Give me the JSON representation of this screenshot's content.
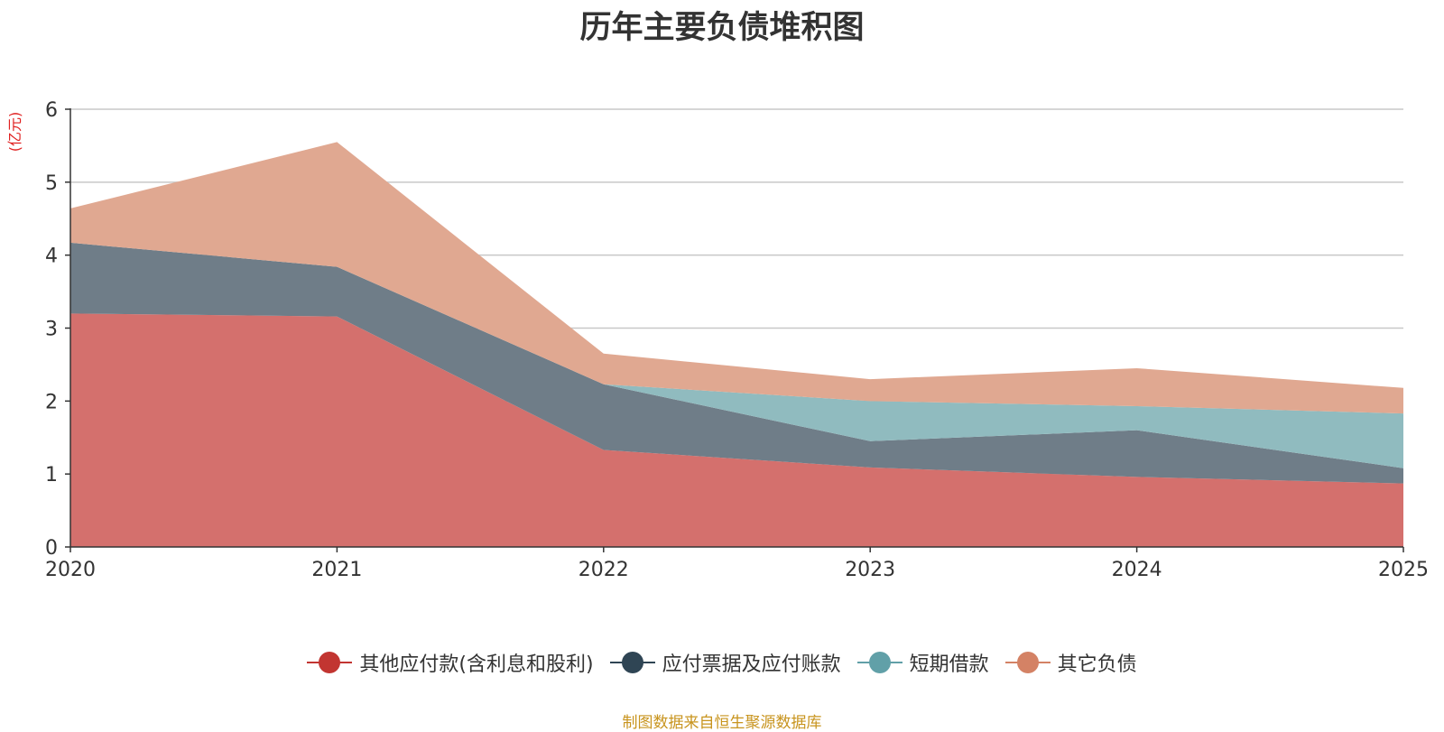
{
  "chart_data": {
    "type": "area",
    "stacked": true,
    "title": "历年主要负债堆积图",
    "ylabel": "(亿元)",
    "xlabel": "",
    "categories": [
      "2020",
      "2021",
      "2022",
      "2023",
      "2024",
      "2025"
    ],
    "ylim": [
      0,
      6
    ],
    "yticks": [
      0,
      1,
      2,
      3,
      4,
      5,
      6
    ],
    "grid": true,
    "legend_position": "bottom",
    "series": [
      {
        "name": "其他应付款(含利息和股利)",
        "color": "#c23531",
        "fill": "#d4706d",
        "values": [
          3.2,
          3.16,
          1.33,
          1.09,
          0.96,
          0.87
        ]
      },
      {
        "name": "应付票据及应付账款",
        "color": "#2f4554",
        "fill": "#6f7d88",
        "values": [
          0.97,
          0.68,
          0.9,
          0.36,
          0.64,
          0.21
        ]
      },
      {
        "name": "短期借款",
        "color": "#61a0a8",
        "fill": "#90bbbf",
        "values": [
          0.0,
          0.0,
          0.0,
          0.55,
          0.33,
          0.75
        ]
      },
      {
        "name": "其它负债",
        "color": "#d48265",
        "fill": "#e0a891",
        "values": [
          0.47,
          1.71,
          0.42,
          0.3,
          0.52,
          0.35
        ]
      }
    ]
  },
  "source_note": "制图数据来自恒生聚源数据库"
}
